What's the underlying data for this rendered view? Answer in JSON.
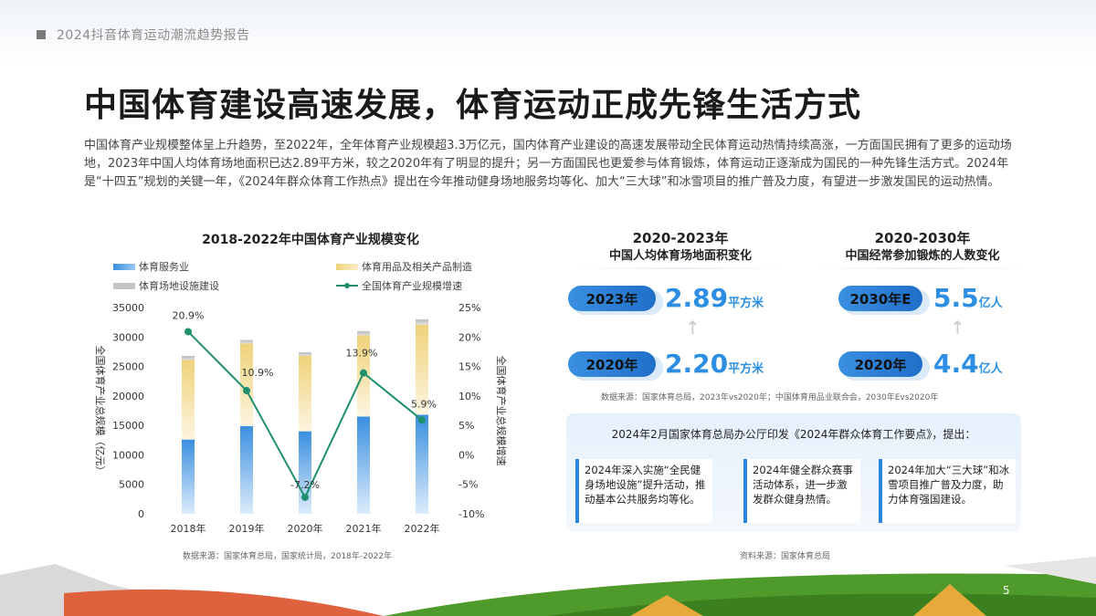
{
  "header": {
    "report_title": "2024抖音体育运动潮流趋势报告"
  },
  "page": {
    "title": "中国体育建设高速发展，体育运动正成先锋生活方式",
    "intro": "中国体育产业规模整体呈上升趋势，至2022年，全年体育产业规模超3.3万亿元，国内体育产业建设的高速发展带动全民体育运动热情持续高涨，一方面国民拥有了更多的运动场地，2023年中国人均体育场地面积已达2.89平方米，较之2020年有了明显的提升；另一方面国民也更爱参与体育锻炼，体育运动正逐渐成为国民的一种先锋生活方式。2024年是“十四五”规划的关键一年，《2024年群众体育工作热点》提出在今年推动健身场地服务均等化、加大“三大球”和冰雪项目的推广普及力度，有望进一步激发国民的运动热情。",
    "page_number": "5"
  },
  "chart_data": {
    "type": "bar",
    "title": "2018-2022年中国体育产业规模变化",
    "categories": [
      "2018年",
      "2019年",
      "2020年",
      "2021年",
      "2022年"
    ],
    "series": [
      {
        "name": "体育服务业",
        "values": [
          12600,
          14900,
          14000,
          16500,
          16800
        ],
        "color": "#3a8fe0"
      },
      {
        "name": "体育用品及相关产品制造",
        "values": [
          13500,
          14000,
          12800,
          13800,
          15300
        ],
        "color": "#f0d27a"
      },
      {
        "name": "体育场地设施建设",
        "values": [
          700,
          600,
          600,
          700,
          900
        ],
        "color": "#c4c4c4"
      }
    ],
    "line_series": {
      "name": "全国体育产业规模增速",
      "values": [
        20.9,
        10.9,
        -7.2,
        13.9,
        5.9
      ],
      "labels": [
        "20.9%",
        "10.9%",
        "-7.2%",
        "13.9%",
        "5.9%"
      ],
      "color": "#1f8f6e"
    },
    "ylabel": "全国体育产业总规模（亿元）",
    "ylabel_right": "全国体育产业总规模增速",
    "ylim": [
      0,
      35000
    ],
    "yticks": [
      "35000",
      "30000",
      "25000",
      "20000",
      "15000",
      "10000",
      "5000",
      "0"
    ],
    "ylim_right": [
      -10,
      25
    ],
    "yticks_right": [
      "25%",
      "20%",
      "15%",
      "10%",
      "5%",
      "0%",
      "-5%",
      "-10%"
    ],
    "source": "数据来源：国家体育总局，国家统计局，2018年-2022年"
  },
  "area_panel": {
    "title_line1": "2020-2023年",
    "title_line2": "中国人均体育场地面积变化",
    "top_year": "2023年",
    "top_value": "2.89",
    "top_unit": "平方米",
    "bottom_year": "2020年",
    "bottom_value": "2.20",
    "bottom_unit": "平方米"
  },
  "exercise_panel": {
    "title_line1": "2020-2030年",
    "title_line2": "中国经常参加锻炼的人数变化",
    "top_year": "2030年E",
    "top_value": "5.5",
    "top_unit": "亿人",
    "bottom_year": "2020年",
    "bottom_value": "4.4",
    "bottom_unit": "亿人"
  },
  "mid_source": "数据来源：国家体育总局，2023年vs2020年；中国体育用品业联合会，2030年Evs2020年",
  "policy": {
    "header": "2024年2月国家体育总局办公厅印发《2024年群众体育工作要点》，提出：",
    "cards": [
      "2024年深入实施“全民健身场地设施”提升活动，推动基本公共服务均等化。",
      "2024年健全群众赛事活动体系，进一步激发群众健身热情。",
      "2024年加大“三大球”和冰雪项目推广普及力度，助力体育强国建设。"
    ],
    "source": "资料来源：国家体育总局"
  }
}
